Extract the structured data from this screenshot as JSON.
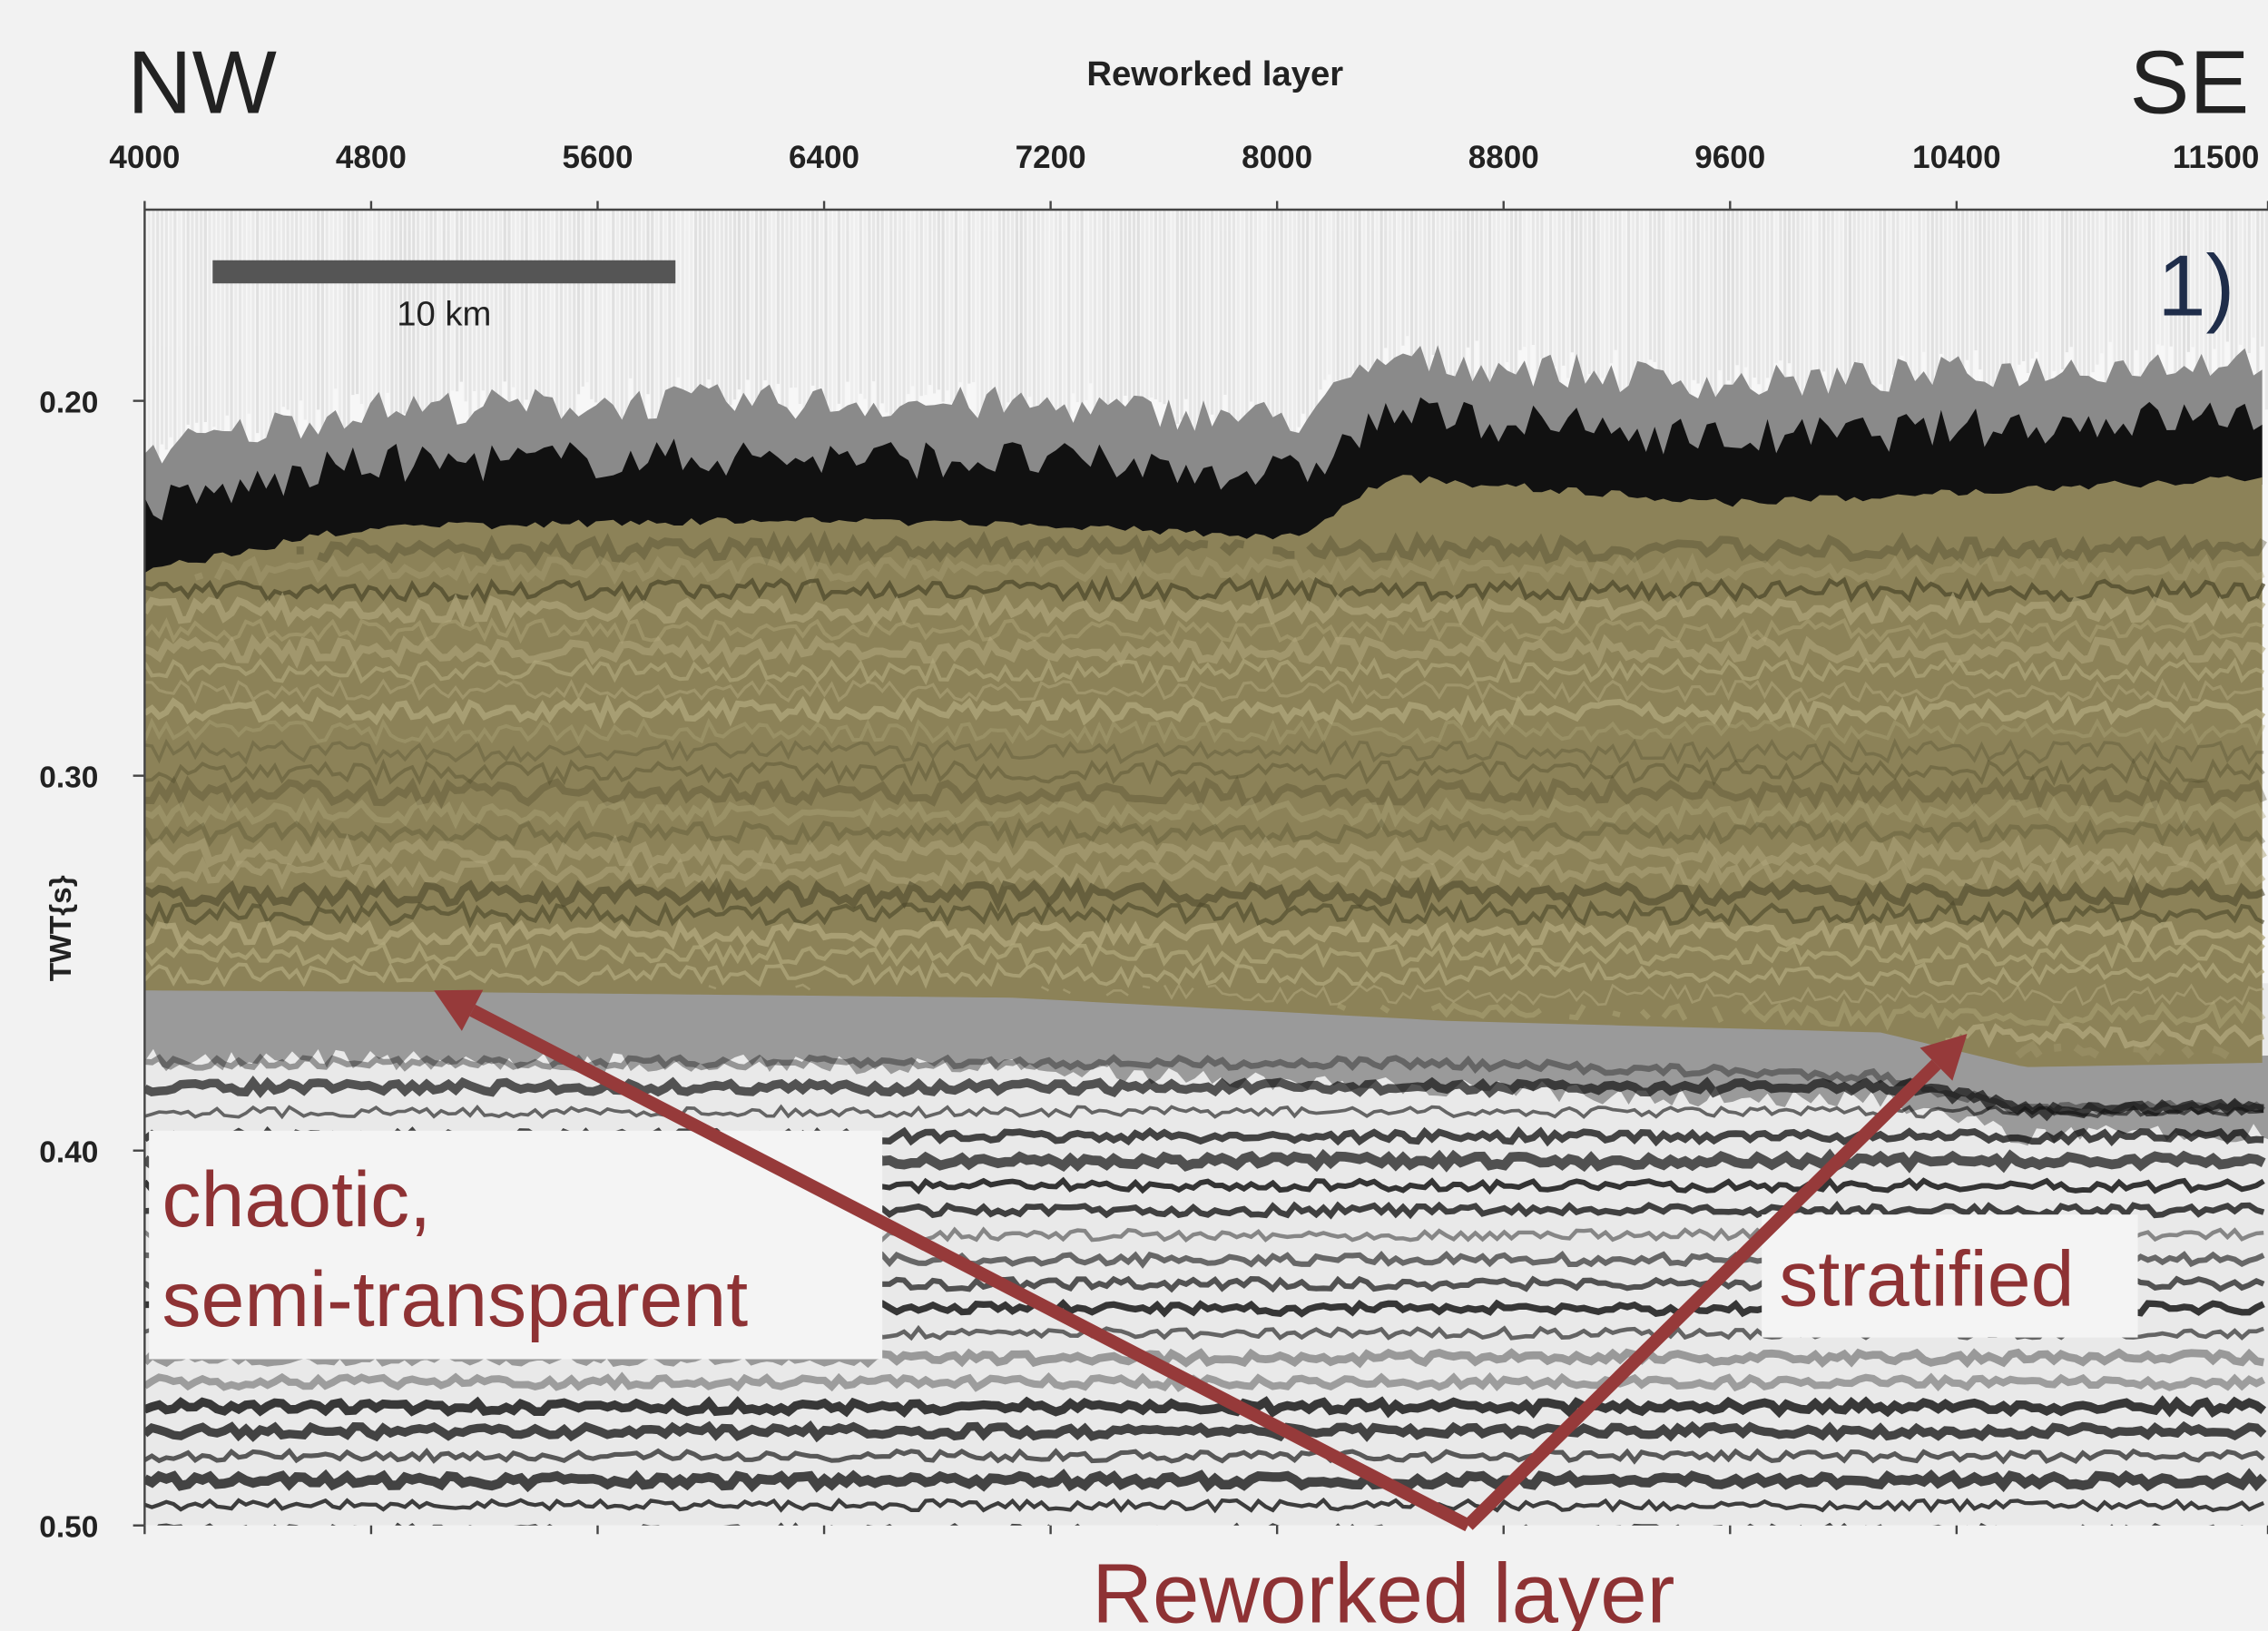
{
  "chart_data": {
    "type": "seismic-section",
    "title": "Reworked layer",
    "corner_labels": [
      "NW",
      "SE"
    ],
    "panel_label": "1)",
    "scale_bar_label": "10 km",
    "ylabel": "TWT{s}",
    "xlim": [
      4000,
      11500
    ],
    "xticks": [
      4000,
      4800,
      5600,
      6400,
      7200,
      8000,
      8800,
      9600,
      10400,
      11500
    ],
    "ylim": [
      0.149,
      0.5
    ],
    "y_inverted": true,
    "yticks": [
      {
        "value": 0.2,
        "label": "0.20"
      },
      {
        "value": 0.3,
        "label": "0.30"
      },
      {
        "value": 0.4,
        "label": "0.40"
      },
      {
        "value": 0.5,
        "label": "0.50"
      }
    ],
    "annotations": [
      "chaotic,",
      "semi-transparent",
      "stratified",
      "Reworked layer"
    ],
    "layer_color": "#8c8258",
    "annotation_color": "#8e3234"
  }
}
